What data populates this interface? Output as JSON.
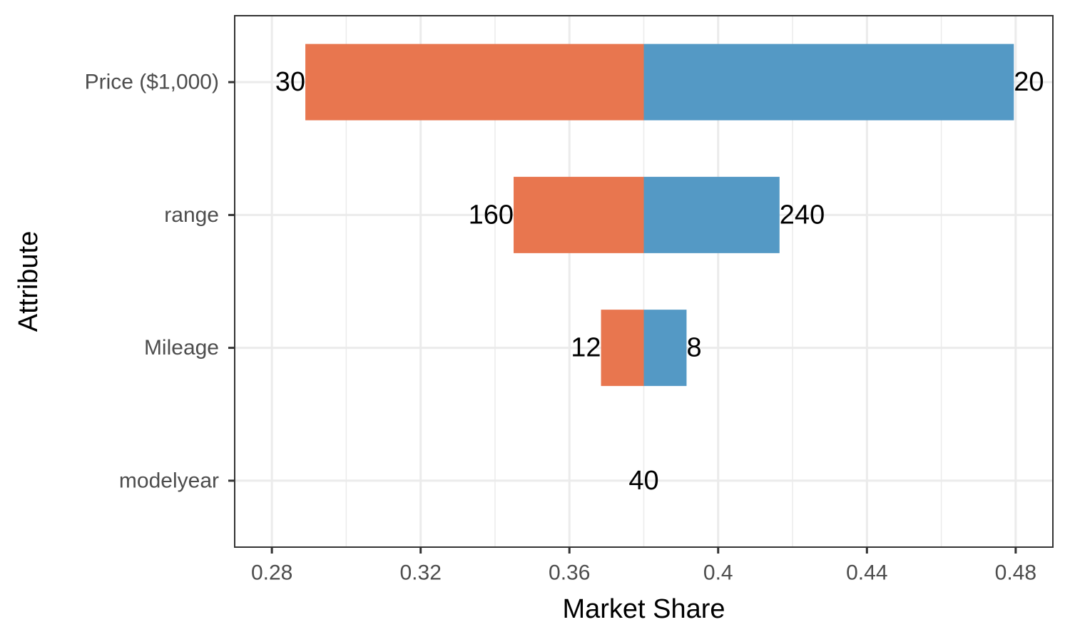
{
  "chart_data": {
    "type": "bar",
    "orientation": "horizontal",
    "title": "",
    "xlabel": "Market Share",
    "ylabel": "Attribute",
    "xlim": [
      0.27,
      0.49
    ],
    "x_ticks": [
      0.28,
      0.32,
      0.36,
      0.4,
      0.44,
      0.48
    ],
    "x_tick_labels": [
      "0.28",
      "0.32",
      "0.36",
      "0.4",
      "0.44",
      "0.48"
    ],
    "baseline": 0.38,
    "grid": true,
    "categories": [
      "Price ($1,000)",
      "range",
      "Mileage",
      "modelyear"
    ],
    "rows": [
      {
        "attribute": "Price ($1,000)",
        "low": 0.289,
        "high": 0.4795,
        "low_label": "30",
        "high_label": "20"
      },
      {
        "attribute": "range",
        "low": 0.345,
        "high": 0.4165,
        "low_label": "160",
        "high_label": "240"
      },
      {
        "attribute": "Mileage",
        "low": 0.3685,
        "high": 0.3915,
        "low_label": "12",
        "high_label": "8"
      },
      {
        "attribute": "modelyear",
        "low": 0.38,
        "high": 0.38,
        "low_label": "40",
        "high_label": ""
      }
    ],
    "colors": {
      "low": "#E8764F",
      "high": "#5499C5"
    }
  }
}
